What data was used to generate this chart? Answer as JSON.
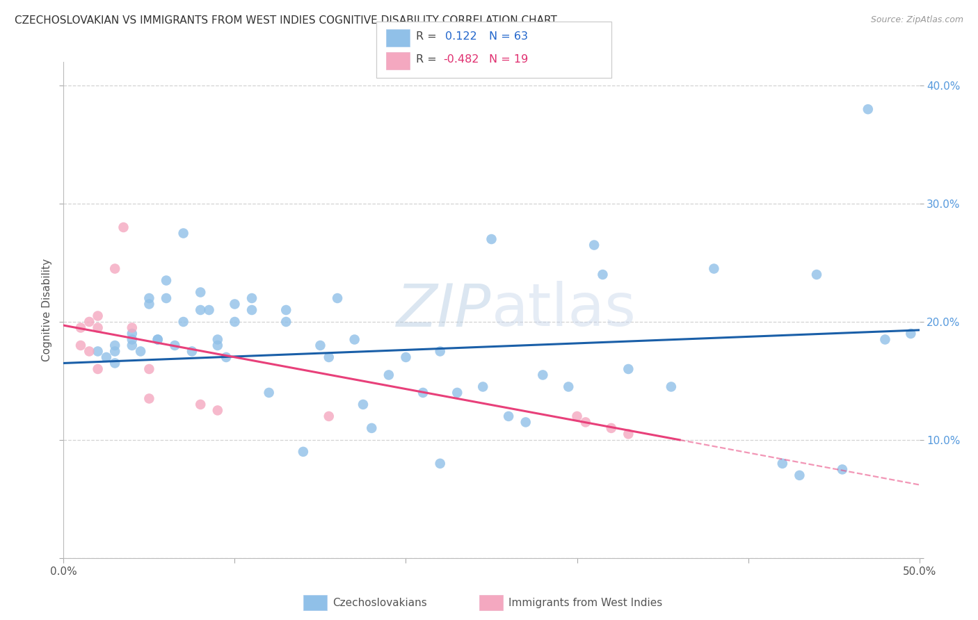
{
  "title": "CZECHOSLOVAKIAN VS IMMIGRANTS FROM WEST INDIES COGNITIVE DISABILITY CORRELATION CHART",
  "source": "Source: ZipAtlas.com",
  "ylabel": "Cognitive Disability",
  "xlim": [
    0.0,
    0.5
  ],
  "ylim": [
    0.0,
    0.42
  ],
  "blue_color": "#90c0e8",
  "pink_color": "#f4a8c0",
  "blue_line_color": "#1a5fa8",
  "pink_line_color": "#e8407a",
  "blue_scatter_x": [
    0.02,
    0.025,
    0.03,
    0.03,
    0.03,
    0.04,
    0.04,
    0.04,
    0.045,
    0.05,
    0.05,
    0.055,
    0.055,
    0.06,
    0.06,
    0.065,
    0.07,
    0.07,
    0.075,
    0.08,
    0.08,
    0.085,
    0.09,
    0.09,
    0.095,
    0.1,
    0.1,
    0.11,
    0.11,
    0.12,
    0.13,
    0.13,
    0.14,
    0.15,
    0.155,
    0.16,
    0.17,
    0.175,
    0.18,
    0.19,
    0.2,
    0.21,
    0.22,
    0.22,
    0.23,
    0.245,
    0.25,
    0.26,
    0.27,
    0.28,
    0.295,
    0.31,
    0.315,
    0.33,
    0.355,
    0.38,
    0.42,
    0.43,
    0.44,
    0.455,
    0.47,
    0.48,
    0.495
  ],
  "blue_scatter_y": [
    0.175,
    0.17,
    0.18,
    0.175,
    0.165,
    0.19,
    0.185,
    0.18,
    0.175,
    0.215,
    0.22,
    0.185,
    0.185,
    0.235,
    0.22,
    0.18,
    0.275,
    0.2,
    0.175,
    0.225,
    0.21,
    0.21,
    0.185,
    0.18,
    0.17,
    0.215,
    0.2,
    0.22,
    0.21,
    0.14,
    0.21,
    0.2,
    0.09,
    0.18,
    0.17,
    0.22,
    0.185,
    0.13,
    0.11,
    0.155,
    0.17,
    0.14,
    0.175,
    0.08,
    0.14,
    0.145,
    0.27,
    0.12,
    0.115,
    0.155,
    0.145,
    0.265,
    0.24,
    0.16,
    0.145,
    0.245,
    0.08,
    0.07,
    0.24,
    0.075,
    0.38,
    0.185,
    0.19
  ],
  "pink_scatter_x": [
    0.01,
    0.01,
    0.015,
    0.015,
    0.02,
    0.02,
    0.02,
    0.03,
    0.035,
    0.04,
    0.05,
    0.05,
    0.08,
    0.09,
    0.155,
    0.3,
    0.305,
    0.32,
    0.33
  ],
  "pink_scatter_y": [
    0.195,
    0.18,
    0.2,
    0.175,
    0.205,
    0.195,
    0.16,
    0.245,
    0.28,
    0.195,
    0.16,
    0.135,
    0.13,
    0.125,
    0.12,
    0.12,
    0.115,
    0.11,
    0.105
  ],
  "blue_line": [
    [
      0.0,
      0.165
    ],
    [
      0.5,
      0.193
    ]
  ],
  "pink_line_solid": [
    [
      0.0,
      0.197
    ],
    [
      0.36,
      0.1
    ]
  ],
  "pink_line_dashed": [
    [
      0.36,
      0.1
    ],
    [
      0.5,
      0.062
    ]
  ]
}
